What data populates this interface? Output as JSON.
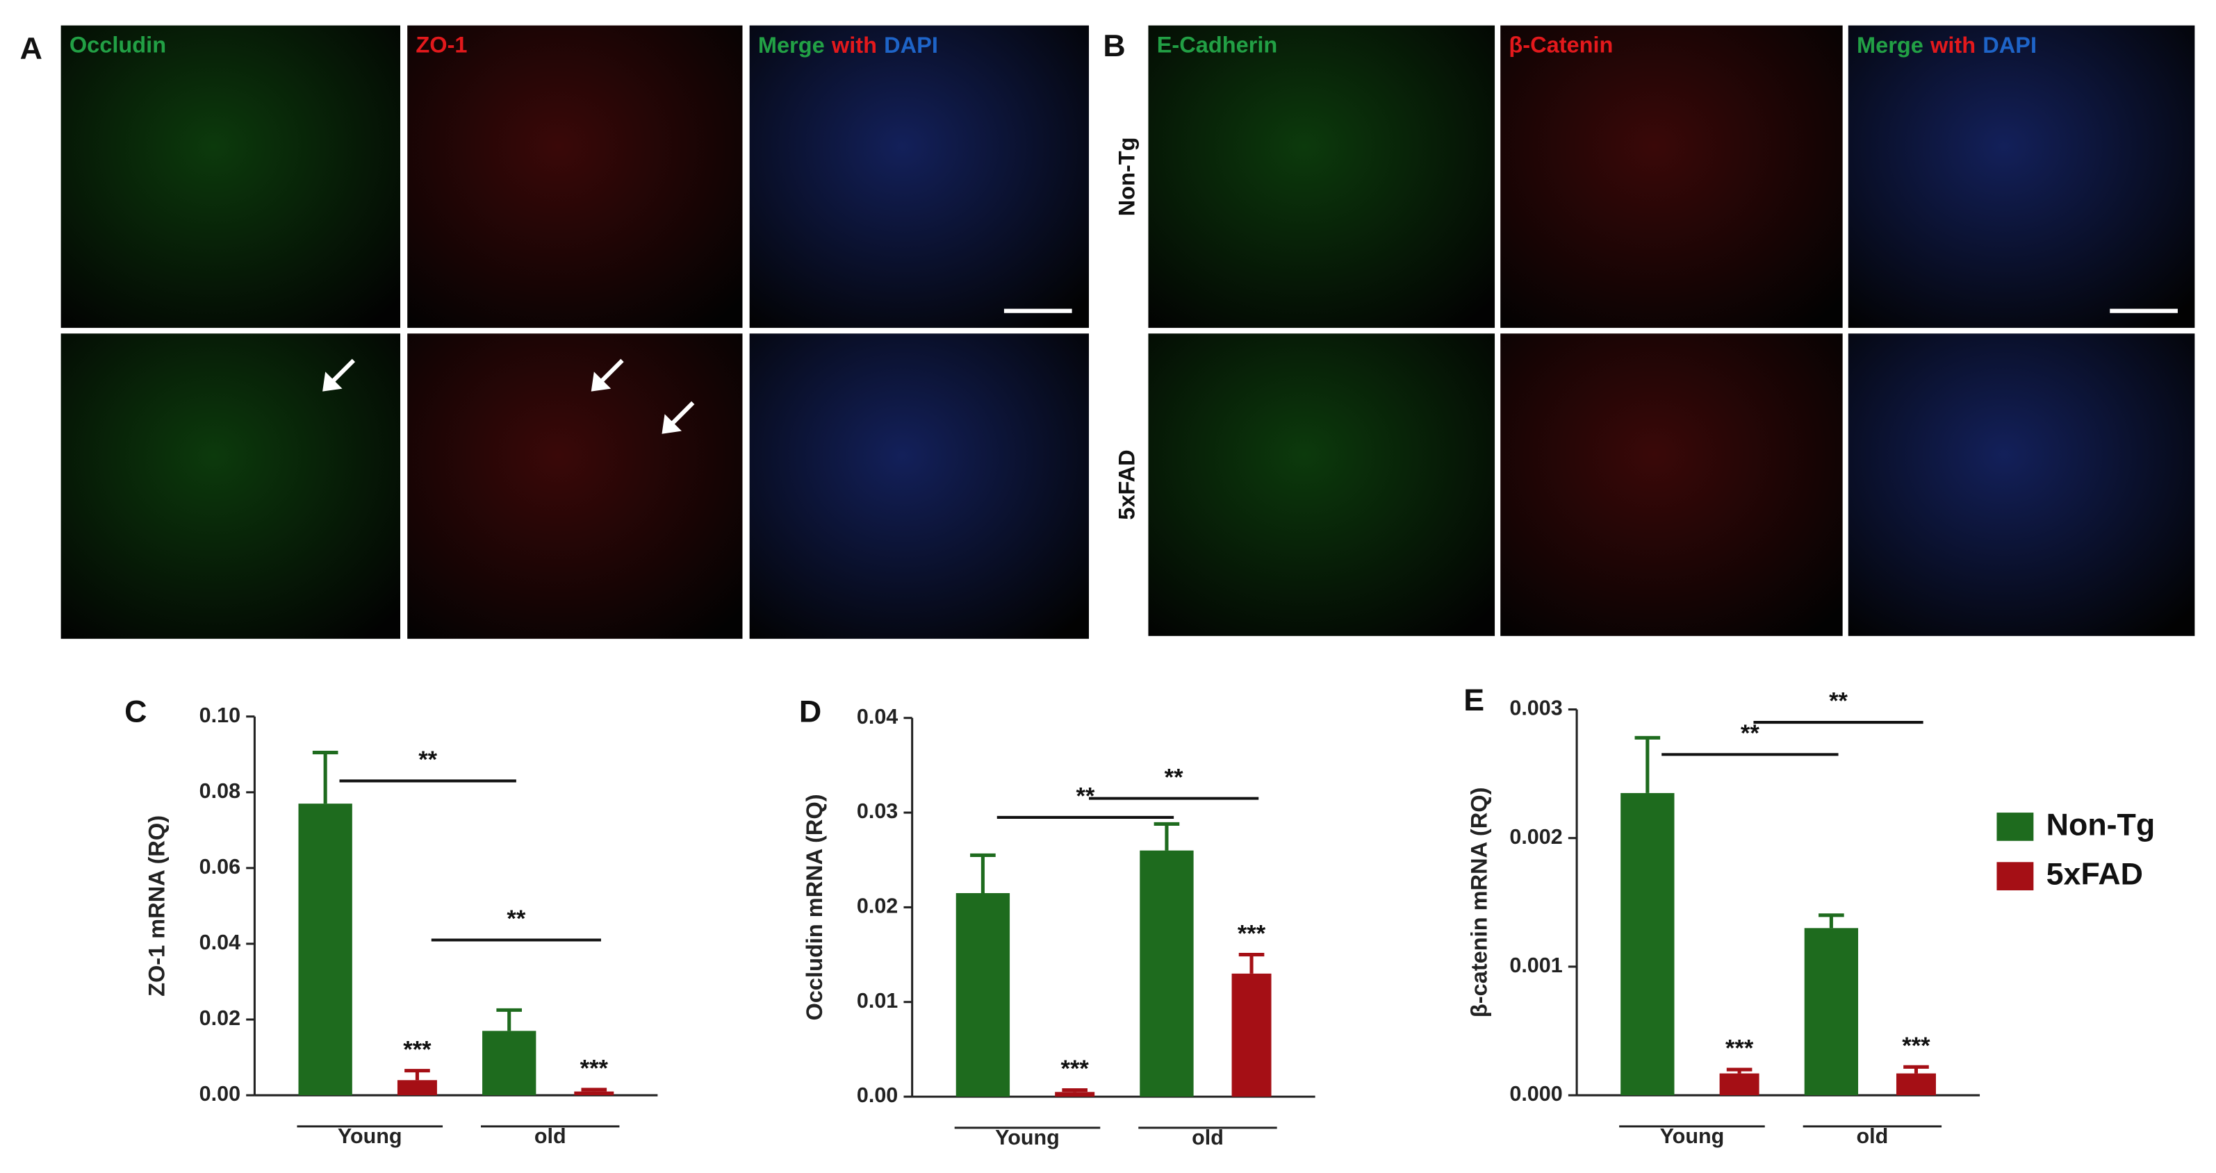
{
  "panel_a": {
    "label": "A",
    "titles": [
      "Occludin",
      "ZO-1"
    ],
    "merge": [
      "Merge",
      "with",
      "DAPI"
    ]
  },
  "panel_b": {
    "label": "B",
    "titles": [
      "E-Cadherin",
      "β-Catenin"
    ],
    "merge": [
      "Merge",
      "with",
      "DAPI"
    ],
    "rows": [
      "Non-Tg",
      "5xFAD"
    ]
  },
  "chart_data": [
    {
      "type": "bar",
      "panel": "C",
      "ylabel": "ZO-1 mRNA (RQ)",
      "categories": [
        "Young",
        "old"
      ],
      "ylim": [
        0,
        0.1
      ],
      "yticks": [
        {
          "value": 0,
          "label": "0.00"
        },
        0.02,
        0.04,
        0.06,
        0.08,
        {
          "value": 0.1,
          "label": "0.10"
        }
      ],
      "series": [
        {
          "color": "#1e6b1e",
          "values": [
            0.077,
            0.017
          ],
          "errors": [
            0.0135,
            0.0055
          ],
          "bracket": {
            "label": "**",
            "y": 0.083
          }
        },
        {
          "color": "#a50f15",
          "values": [
            0.004,
            0.001
          ],
          "errors": [
            0.0025,
            0.0005
          ],
          "bracket": {
            "label": "**",
            "y": 0.041
          },
          "annotations": [
            "***",
            "***"
          ]
        }
      ]
    },
    {
      "type": "bar",
      "panel": "D",
      "ylabel": "Occludin mRNA (RQ)",
      "categories": [
        "Young",
        "old"
      ],
      "ylim": [
        0,
        0.04
      ],
      "yticks": [
        {
          "value": 0,
          "label": "0.00"
        },
        0.01,
        0.02,
        0.03,
        0.04
      ],
      "series": [
        {
          "color": "#1e6b1e",
          "values": [
            0.0215,
            0.026
          ],
          "errors": [
            0.004,
            0.0028
          ],
          "bracket": {
            "label": "**",
            "y": 0.0295
          }
        },
        {
          "color": "#a50f15",
          "values": [
            0.0005,
            0.013
          ],
          "errors": [
            0.0002,
            0.002
          ],
          "bracket": {
            "label": "**",
            "y": 0.0315
          },
          "annotations": [
            "***",
            "***"
          ]
        }
      ]
    },
    {
      "type": "bar",
      "panel": "E",
      "ylabel": "β-catenin mRNA (RQ)",
      "categories": [
        "Young",
        "old"
      ],
      "ylim": [
        0,
        0.003
      ],
      "yticks": [
        {
          "value": 0,
          "label": "0.000"
        },
        0.001,
        0.002,
        0.003
      ],
      "legend": true,
      "series": [
        {
          "name": "Non-Tg",
          "color": "#1e6b1e",
          "values": [
            0.00235,
            0.0013
          ],
          "errors": [
            0.00043,
            0.0001
          ],
          "bracket": {
            "label": "**",
            "y": 0.00265
          }
        },
        {
          "name": "5xFAD",
          "color": "#a50f15",
          "values": [
            0.00017,
            0.00017
          ],
          "errors": [
            3e-05,
            5e-05
          ],
          "bracket": {
            "label": "**",
            "y": 0.0029
          },
          "annotations": [
            "***",
            "***"
          ]
        }
      ]
    }
  ]
}
